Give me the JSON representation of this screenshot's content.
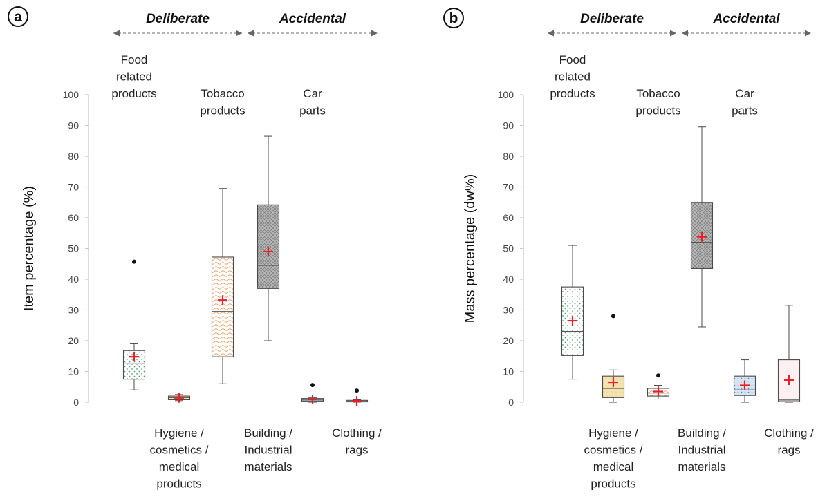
{
  "chart_data": [
    {
      "type": "box",
      "panel": "a",
      "ylabel": "Item percentage (%)",
      "ylim": [
        0,
        100
      ],
      "yticks": [
        0,
        10,
        20,
        30,
        40,
        50,
        60,
        70,
        80,
        90,
        100
      ],
      "groups": [
        {
          "label": "Deliberate",
          "categories": [
            "Food related products",
            "Hygiene / cosmetics / medical products",
            "Tobacco products"
          ]
        },
        {
          "label": "Accidental",
          "categories": [
            "Building / Industrial materials",
            "Car parts",
            "Clothing / rags"
          ]
        }
      ],
      "categories": [
        {
          "label": "Food related products",
          "label_lines": [
            "Food",
            "related",
            "products"
          ],
          "label_position": "top",
          "pattern": "dots-green",
          "whisker_low": 4.0,
          "q1": 7.5,
          "median": 12.5,
          "q3": 16.8,
          "whisker_high": 19.0,
          "mean": 14.8,
          "outliers": [
            45.7
          ]
        },
        {
          "label": "Hygiene / cosmetics / medical products",
          "label_lines": [
            "Hygiene /",
            "cosmetics /",
            "medical",
            "products"
          ],
          "label_position": "bottom",
          "pattern": "solid-yellow",
          "whisker_low": 0.5,
          "q1": 0.8,
          "median": 1.5,
          "q3": 2.0,
          "whisker_high": 2.5,
          "mean": 1.4,
          "outliers": []
        },
        {
          "label": "Tobacco products",
          "label_lines": [
            "Tobacco",
            "products"
          ],
          "label_position": "top",
          "pattern": "waves-orange",
          "whisker_low": 6.0,
          "q1": 14.8,
          "median": 29.5,
          "q3": 47.2,
          "whisker_high": 69.5,
          "mean": 33.2,
          "outliers": []
        },
        {
          "label": "Building / Industrial materials",
          "label_lines": [
            "Building /",
            "Industrial",
            "materials"
          ],
          "label_position": "bottom",
          "pattern": "cross-grey",
          "whisker_low": 20.0,
          "q1": 37.0,
          "median": 44.5,
          "q3": 64.2,
          "whisker_high": 86.5,
          "mean": 49.0,
          "outliers": []
        },
        {
          "label": "Car parts",
          "label_lines": [
            "Car",
            "parts"
          ],
          "label_position": "top",
          "pattern": "dots-blue",
          "whisker_low": 0.0,
          "q1": 0.3,
          "median": 0.7,
          "q3": 1.2,
          "whisker_high": 1.5,
          "mean": 0.9,
          "outliers": [
            5.6
          ]
        },
        {
          "label": "Clothing / rags",
          "label_lines": [
            "Clothing /",
            "rags"
          ],
          "label_position": "bottom",
          "pattern": "plain-pink",
          "whisker_low": 0.0,
          "q1": 0.1,
          "median": 0.3,
          "q3": 0.6,
          "whisker_high": 0.8,
          "mean": 0.4,
          "outliers": [
            3.8
          ]
        }
      ]
    },
    {
      "type": "box",
      "panel": "b",
      "ylabel": "Mass percentage (dw%)",
      "ylim": [
        0,
        100
      ],
      "yticks": [
        0,
        10,
        20,
        30,
        40,
        50,
        60,
        70,
        80,
        90,
        100
      ],
      "groups": [
        {
          "label": "Deliberate",
          "categories": [
            "Food related products",
            "Hygiene / cosmetics / medical products",
            "Tobacco products"
          ]
        },
        {
          "label": "Accidental",
          "categories": [
            "Building / Industrial materials",
            "Car parts",
            "Clothing / rags"
          ]
        }
      ],
      "categories": [
        {
          "label": "Food related products",
          "label_lines": [
            "Food",
            "related",
            "products"
          ],
          "label_position": "top",
          "pattern": "dots-green",
          "whisker_low": 7.5,
          "q1": 15.2,
          "median": 23.0,
          "q3": 37.5,
          "whisker_high": 51.0,
          "mean": 26.5,
          "outliers": []
        },
        {
          "label": "Hygiene / cosmetics / medical products",
          "label_lines": [
            "Hygiene /",
            "cosmetics /",
            "medical",
            "products"
          ],
          "label_position": "bottom",
          "pattern": "solid-yellow",
          "whisker_low": 0.0,
          "q1": 1.5,
          "median": 4.5,
          "q3": 8.5,
          "whisker_high": 10.5,
          "mean": 6.5,
          "outliers": [
            28.0
          ]
        },
        {
          "label": "Tobacco products",
          "label_lines": [
            "Tobacco",
            "products"
          ],
          "label_position": "top",
          "pattern": "waves-orange",
          "whisker_low": 1.0,
          "q1": 2.0,
          "median": 3.0,
          "q3": 4.5,
          "whisker_high": 5.5,
          "mean": 3.5,
          "outliers": [
            8.7
          ]
        },
        {
          "label": "Building / Industrial materials",
          "label_lines": [
            "Building /",
            "Industrial",
            "materials"
          ],
          "label_position": "bottom",
          "pattern": "cross-grey",
          "whisker_low": 24.5,
          "q1": 43.5,
          "median": 52.0,
          "q3": 65.0,
          "whisker_high": 89.5,
          "mean": 53.8,
          "outliers": []
        },
        {
          "label": "Car parts",
          "label_lines": [
            "Car",
            "parts"
          ],
          "label_position": "top",
          "pattern": "dots-blue",
          "whisker_low": 0.0,
          "q1": 2.2,
          "median": 4.0,
          "q3": 8.5,
          "whisker_high": 13.8,
          "mean": 5.5,
          "outliers": []
        },
        {
          "label": "Clothing / rags",
          "label_lines": [
            "Clothing /",
            "rags"
          ],
          "label_position": "bottom",
          "pattern": "plain-pink",
          "whisker_low": 0.0,
          "q1": 0.2,
          "median": 0.7,
          "q3": 13.8,
          "whisker_high": 31.5,
          "mean": 7.2,
          "outliers": []
        }
      ]
    }
  ],
  "colors": {
    "axis": "#c8c8c8",
    "box_stroke": "#4a4a4a",
    "median": "#555555",
    "mean_marker": "#e8202a",
    "outlier": "#111111",
    "arrow": "#888888"
  }
}
